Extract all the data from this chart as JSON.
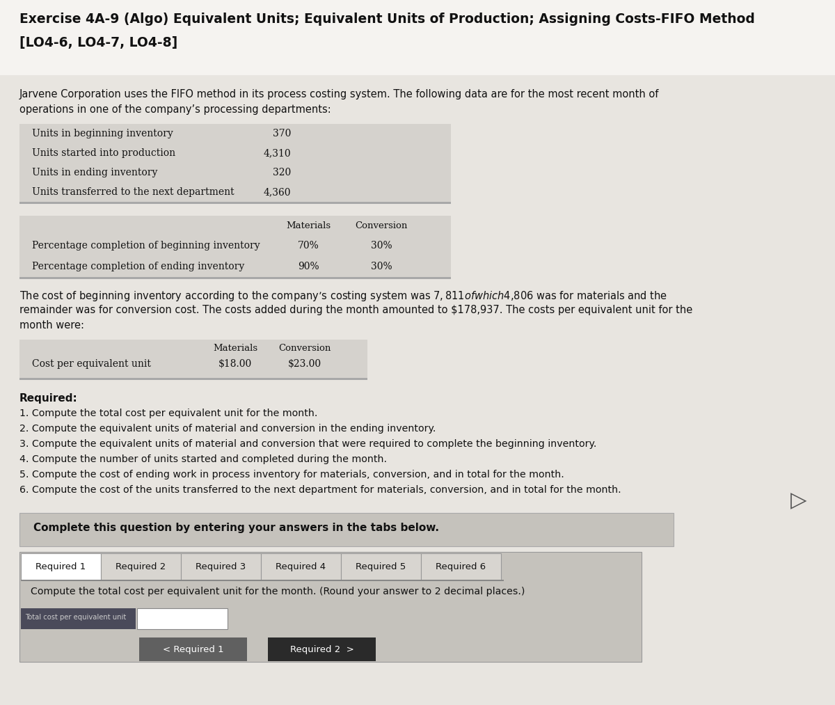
{
  "title_line1": "Exercise 4A-9 (Algo) Equivalent Units; Equivalent Units of Production; Assigning Costs-FIFO Method",
  "title_line2": "[LO4-6, LO4-7, LO4-8]",
  "intro_text_1": "Jarvene Corporation uses the FIFO method in its process costing system. The following data are for the most recent month of",
  "intro_text_2": "operations in one of the company’s processing departments:",
  "table1_labels": [
    "Units in beginning inventory",
    "Units started into production",
    "Units in ending inventory",
    "Units transferred to the next department"
  ],
  "table1_values": [
    "370",
    "4,310",
    "320",
    "4,360"
  ],
  "table2_col_headers": [
    "Materials",
    "Conversion"
  ],
  "table2_labels": [
    "Percentage completion of beginning inventory",
    "Percentage completion of ending inventory"
  ],
  "table2_materials": [
    "70%",
    "90%"
  ],
  "table2_conversion": [
    "30%",
    "30%"
  ],
  "para1": "The cost of beginning inventory according to the company’s costing system was $7,811 of which $4,806 was for materials and the",
  "para2": "remainder was for conversion cost. The costs added during the month amounted to $178,937. The costs per equivalent unit for the",
  "para3": "month were:",
  "table3_label": "Cost per equivalent unit",
  "table3_col_headers": [
    "Materials",
    "Conversion"
  ],
  "table3_materials": "$18.00",
  "table3_conversion": "$23.00",
  "required_header": "Required:",
  "required_items": [
    "1. Compute the total cost per equivalent unit for the month.",
    "2. Compute the equivalent units of material and conversion in the ending inventory.",
    "3. Compute the equivalent units of material and conversion that were required to complete the beginning inventory.",
    "4. Compute the number of units started and completed during the month.",
    "5. Compute the cost of ending work in process inventory for materials, conversion, and in total for the month.",
    "6. Compute the cost of the units transferred to the next department for materials, conversion, and in total for the month."
  ],
  "complete_text": "Complete this question by entering your answers in the tabs below.",
  "tab_labels": [
    "Required 1",
    "Required 2",
    "Required 3",
    "Required 4",
    "Required 5",
    "Required 6"
  ],
  "tab_instruction": "Compute the total cost per equivalent unit for the month. (Round your answer to 2 decimal places.)",
  "nav_left": "< Required 1",
  "nav_right": "Required 2  >"
}
